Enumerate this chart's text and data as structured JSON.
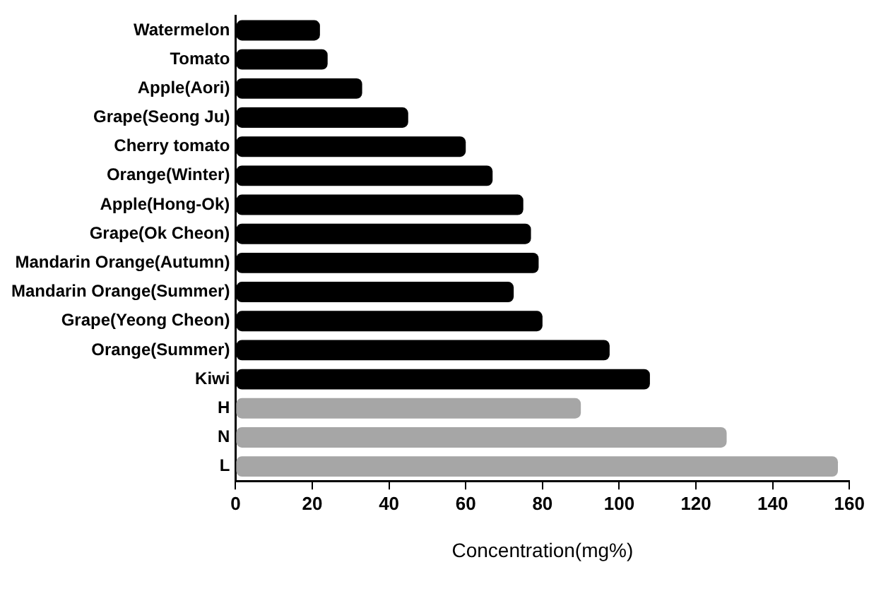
{
  "chart_data": {
    "type": "bar",
    "orientation": "horizontal",
    "xlabel": "Concentration(mg%)",
    "categories": [
      "Watermelon",
      "Tomato",
      "Apple(Aori)",
      "Grape(Seong Ju)",
      "Cherry tomato",
      "Orange(Winter)",
      "Apple(Hong-Ok)",
      "Grape(Ok Cheon)",
      "Mandarin Orange(Autumn)",
      "Mandarin Orange(Summer)",
      "Grape(Yeong Cheon)",
      "Orange(Summer)",
      "Kiwi",
      "H",
      "N",
      "L"
    ],
    "values": [
      22,
      24,
      33,
      45,
      60,
      67,
      75,
      77,
      79,
      72.5,
      80,
      97.5,
      108,
      90,
      128,
      157
    ],
    "colors": [
      "#000000",
      "#000000",
      "#000000",
      "#000000",
      "#000000",
      "#000000",
      "#000000",
      "#000000",
      "#000000",
      "#000000",
      "#000000",
      "#000000",
      "#000000",
      "#a6a6a6",
      "#a6a6a6",
      "#a6a6a6"
    ],
    "xlim": [
      0,
      160
    ],
    "xticks": [
      0,
      20,
      40,
      60,
      80,
      100,
      120,
      140,
      160
    ],
    "grid": false,
    "legend": false
  }
}
